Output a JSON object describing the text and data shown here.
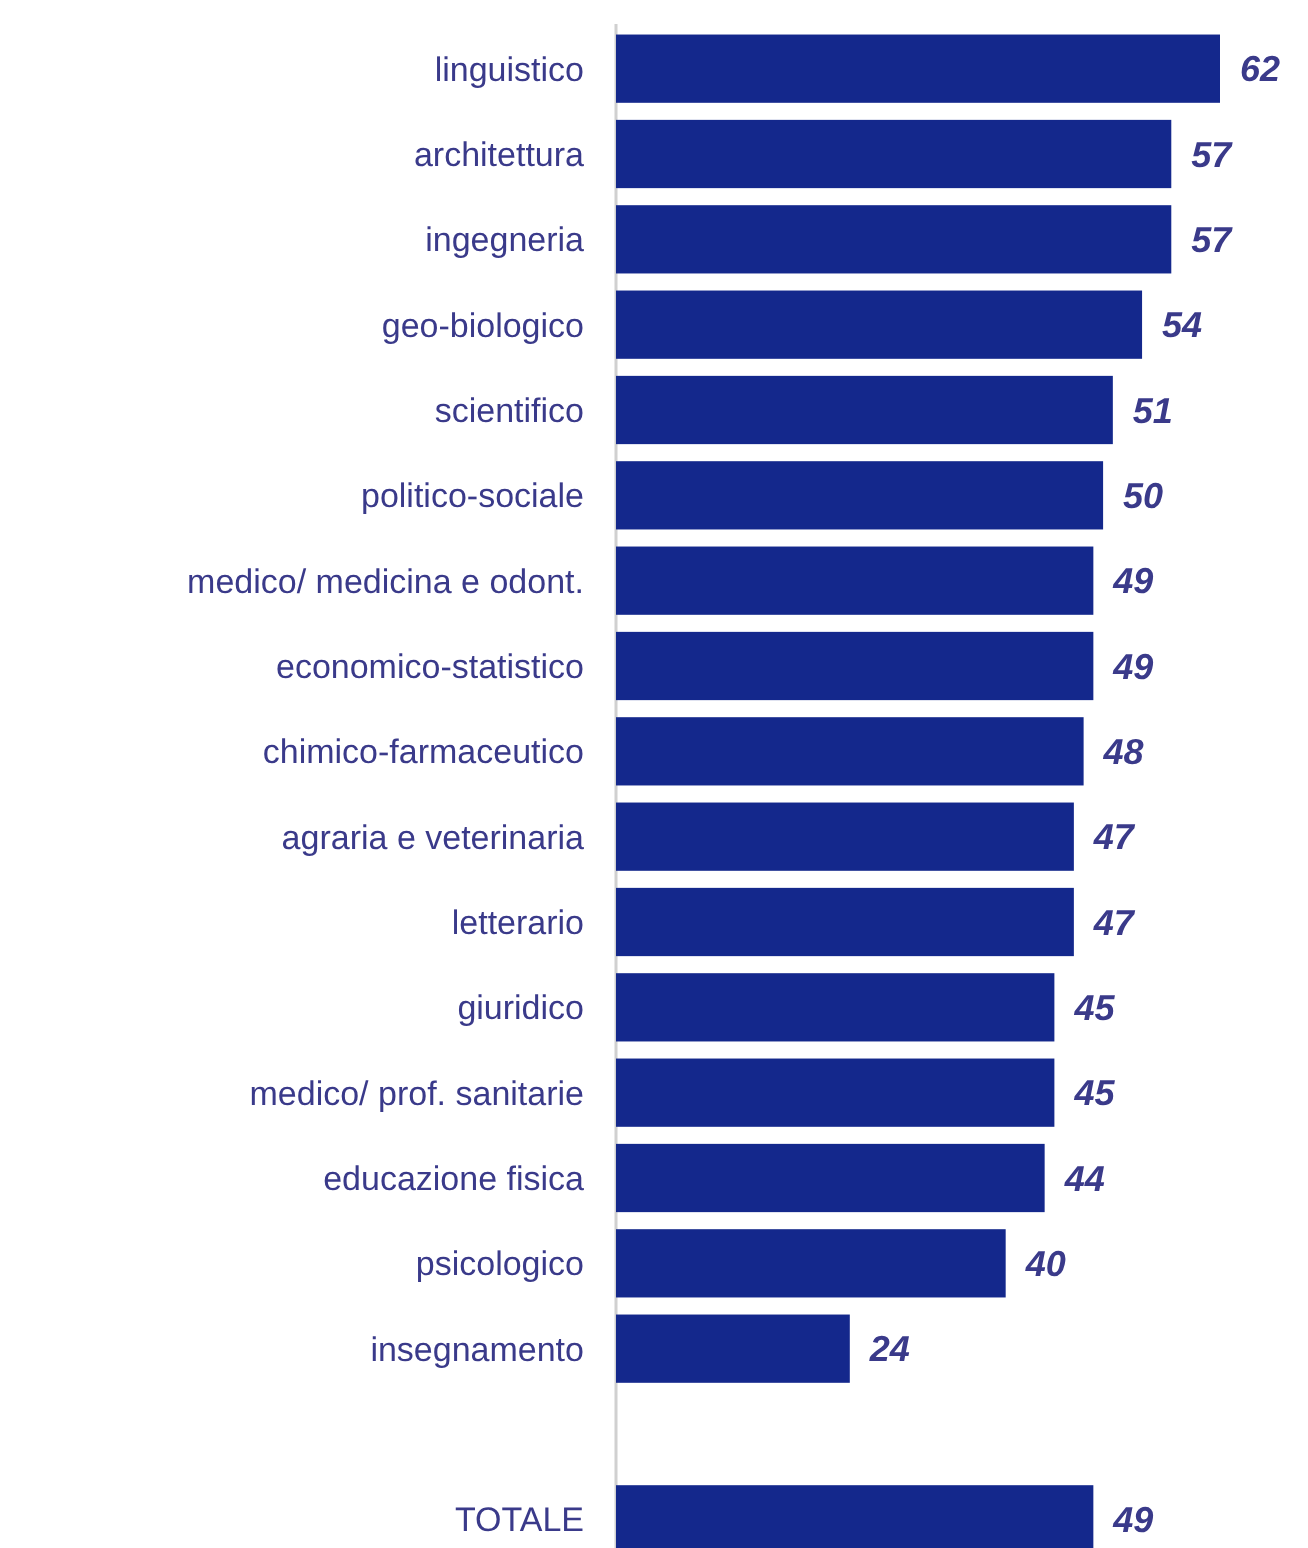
{
  "chart_data": {
    "type": "bar",
    "orientation": "horizontal",
    "categories": [
      "linguistico",
      "architettura",
      "ingegneria",
      "geo-biologico",
      "scientifico",
      "politico-sociale",
      "medico/ medicina e odont.",
      "economico-statistico",
      "chimico-farmaceutico",
      "agraria e veterinaria",
      "letterario",
      "giuridico",
      "medico/ prof. sanitarie",
      "educazione fisica",
      "psicologico",
      "insegnamento",
      null,
      "TOTALE"
    ],
    "values": [
      62,
      57,
      57,
      54,
      51,
      50,
      49,
      49,
      48,
      47,
      47,
      45,
      45,
      44,
      40,
      24,
      null,
      49
    ],
    "color": "#14288c",
    "data_labels": true
  }
}
